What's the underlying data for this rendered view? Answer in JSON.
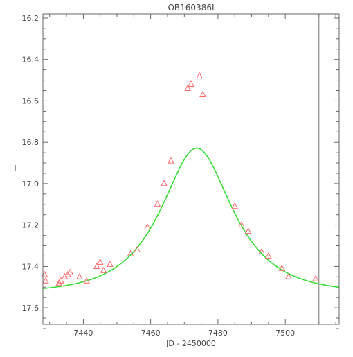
{
  "chart_data": {
    "type": "scatter",
    "title": "OB160386I",
    "xlabel": "JD - 2450000",
    "ylabel": "I",
    "xlim": [
      7428,
      7516
    ],
    "ylim": [
      17.68,
      16.18
    ],
    "y_inverted": true,
    "x_ticks": [
      7440,
      7460,
      7480,
      7500
    ],
    "x_tick_labels": [
      "7440",
      "7460",
      "7480",
      "7500"
    ],
    "y_ticks": [
      16.2,
      16.4,
      16.6,
      16.8,
      17.0,
      17.2,
      17.4,
      17.6
    ],
    "y_tick_labels": [
      "16.2",
      "16.4",
      "16.6",
      "16.8",
      "17.0",
      "17.2",
      "17.4",
      "17.6"
    ],
    "grid": false,
    "legend": "none",
    "vertical_line_x": 7510,
    "series": [
      {
        "marker": "triangle",
        "color": "#ff6666",
        "points": [
          {
            "x": 7428.5,
            "y": 17.44
          },
          {
            "x": 7428.8,
            "y": 17.47
          },
          {
            "x": 7432.8,
            "y": 17.48
          },
          {
            "x": 7433.3,
            "y": 17.47
          },
          {
            "x": 7434.5,
            "y": 17.45
          },
          {
            "x": 7435.4,
            "y": 17.44
          },
          {
            "x": 7436.1,
            "y": 17.43
          },
          {
            "x": 7438.9,
            "y": 17.45
          },
          {
            "x": 7441.0,
            "y": 17.47
          },
          {
            "x": 7444.0,
            "y": 17.4
          },
          {
            "x": 7445.0,
            "y": 17.38
          },
          {
            "x": 7446.0,
            "y": 17.42
          },
          {
            "x": 7447.9,
            "y": 17.39
          },
          {
            "x": 7454.0,
            "y": 17.34
          },
          {
            "x": 7456.0,
            "y": 17.32
          },
          {
            "x": 7459.0,
            "y": 17.21
          },
          {
            "x": 7462.0,
            "y": 17.1
          },
          {
            "x": 7464.0,
            "y": 17.0
          },
          {
            "x": 7466.0,
            "y": 16.89
          },
          {
            "x": 7471.0,
            "y": 16.54
          },
          {
            "x": 7472.0,
            "y": 16.52
          },
          {
            "x": 7474.5,
            "y": 16.48
          },
          {
            "x": 7475.5,
            "y": 16.57
          },
          {
            "x": 7485.0,
            "y": 17.11
          },
          {
            "x": 7487.0,
            "y": 17.2
          },
          {
            "x": 7489.0,
            "y": 17.23
          },
          {
            "x": 7493.0,
            "y": 17.33
          },
          {
            "x": 7495.0,
            "y": 17.35
          },
          {
            "x": 7499.0,
            "y": 17.41
          },
          {
            "x": 7501.0,
            "y": 17.45
          },
          {
            "x": 7509.0,
            "y": 17.46
          }
        ]
      },
      {
        "line": true,
        "color": "#33dd33",
        "model": {
          "t0": 7473.7,
          "u0": 0.59,
          "tE": 16.8,
          "base_mag": 17.53
        }
      }
    ]
  }
}
